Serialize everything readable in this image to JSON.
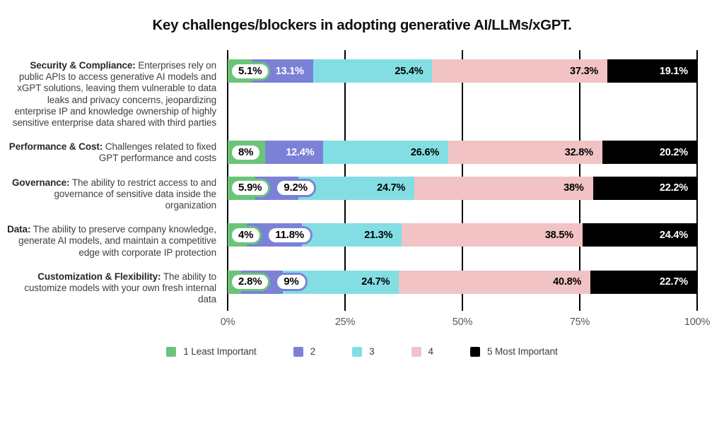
{
  "title": "Key challenges/blockers in adopting generative AI/LLMs/xGPT.",
  "chart_data": {
    "type": "bar",
    "orientation": "horizontal",
    "stacked": true,
    "grid": true,
    "xlim": [
      0,
      100
    ],
    "x_ticks": [
      "0%",
      "25%",
      "50%",
      "75%",
      "100%"
    ],
    "legend_position": "bottom",
    "series": [
      {
        "name": "1 Least Important",
        "color": "#6cc479"
      },
      {
        "name": "2",
        "color": "#7c81d8"
      },
      {
        "name": "3",
        "color": "#82dee3"
      },
      {
        "name": "4",
        "color": "#f1c3c5"
      },
      {
        "name": "5 Most  Important",
        "color": "#000000"
      }
    ],
    "rows": [
      {
        "category": "Security & Compliance:",
        "description": "Enterprises rely on public APIs to access generative AI models and xGPT solutions, leaving them vulnerable to data leaks and privacy concerns, jeopardizing enterprise IP and knowledge ownership of highly sensitive enterprise data shared with third parties",
        "values": [
          5.1,
          13.1,
          25.4,
          37.3,
          19.1
        ],
        "display": [
          "5.1%",
          "13.1%",
          "25.4%",
          "37.3%",
          "19.1%"
        ],
        "pill_segments": [
          0
        ]
      },
      {
        "category": "Performance & Cost:",
        "description": "Challenges related to fixed GPT performance and costs",
        "values": [
          8,
          12.4,
          26.6,
          32.8,
          20.2
        ],
        "display": [
          "8%",
          "12.4%",
          "26.6%",
          "32.8%",
          "20.2%"
        ],
        "pill_segments": [
          0
        ]
      },
      {
        "category": "Governance:",
        "description": "The ability to restrict access to and governance of sensitive data inside the organization",
        "values": [
          5.9,
          9.2,
          24.7,
          38,
          22.2
        ],
        "display": [
          "5.9%",
          "9.2%",
          "24.7%",
          "38%",
          "22.2%"
        ],
        "pill_segments": [
          0,
          1
        ]
      },
      {
        "category": "Data:",
        "description": "The ability to preserve company knowledge, generate AI models, and maintain a competitive edge with corporate IP protection",
        "values": [
          4,
          11.8,
          21.3,
          38.5,
          24.4
        ],
        "display": [
          "4%",
          "11.8%",
          "21.3%",
          "38.5%",
          "24.4%"
        ],
        "pill_segments": [
          0,
          1
        ]
      },
      {
        "category": "Customization & Flexibility:",
        "description": "The ability to customize models with your own fresh internal data",
        "values": [
          2.8,
          9,
          24.7,
          40.8,
          22.7
        ],
        "display": [
          "2.8%",
          "9%",
          "24.7%",
          "40.8%",
          "22.7%"
        ],
        "pill_segments": [
          0,
          1
        ]
      }
    ]
  }
}
